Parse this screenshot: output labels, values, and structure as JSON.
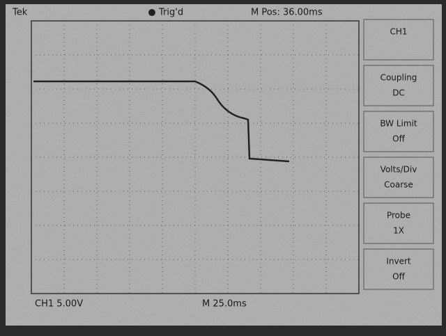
{
  "header": {
    "brand": "Tek",
    "trigger_state": "Trig'd",
    "position": "M Pos: 36.00ms"
  },
  "menu": {
    "items": [
      [
        "CH1",
        ""
      ],
      [
        "Coupling",
        "DC"
      ],
      [
        "BW Limit",
        "Off"
      ],
      [
        "Volts/Div",
        "Coarse"
      ],
      [
        "Probe",
        "1X"
      ],
      [
        "Invert",
        "Off"
      ]
    ]
  },
  "footer": {
    "channel": "CH1 5.00V",
    "timebase": "M 25.0ms"
  }
}
